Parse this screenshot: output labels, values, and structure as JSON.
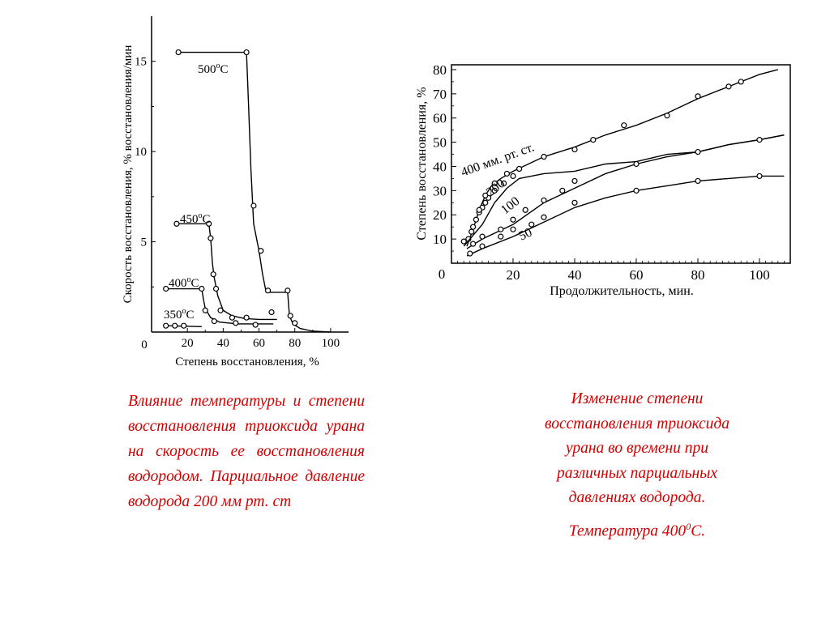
{
  "chart_data": [
    {
      "type": "line",
      "xlabel": "Степень восстановления, %",
      "ylabel": "Скорость восстановления, % восстановления/мин",
      "xlim": [
        0,
        110
      ],
      "ylim": [
        0,
        17.5
      ],
      "x_ticks": [
        "0",
        "20",
        "40",
        "60",
        "80",
        "100"
      ],
      "x_tick_values": [
        0,
        20,
        40,
        60,
        80,
        100
      ],
      "y_ticks": [
        "5",
        "10",
        "15"
      ],
      "y_tick_values": [
        5,
        10,
        15
      ],
      "grid": false,
      "series": [
        {
          "name": "500°C",
          "label_base": "500",
          "label_sup": "o",
          "label_tail": "C",
          "line": [
            [
              14,
              15.5
            ],
            [
              53,
              15.5
            ],
            [
              54,
              13
            ],
            [
              55.5,
              9
            ],
            [
              57,
              6
            ],
            [
              60,
              4.5
            ],
            [
              62,
              3.2
            ],
            [
              64,
              2.2
            ],
            [
              76,
              2.2
            ],
            [
              77,
              0.9
            ],
            [
              79,
              0.45
            ],
            [
              83,
              0.2
            ],
            [
              90,
              0.05
            ],
            [
              100,
              0
            ]
          ],
          "points": [
            [
              15,
              15.5
            ],
            [
              53,
              15.5
            ],
            [
              57,
              7.0
            ],
            [
              61,
              4.5
            ],
            [
              65,
              2.3
            ],
            [
              76,
              2.3
            ],
            [
              77.5,
              0.9
            ],
            [
              80,
              0.5
            ]
          ]
        },
        {
          "name": "450°C",
          "label_base": "450",
          "label_sup": "o",
          "label_tail": "C",
          "line": [
            [
              14,
              6.0
            ],
            [
              32,
              6.0
            ],
            [
              33,
              5.2
            ],
            [
              34,
              3.8
            ],
            [
              35,
              3.0
            ],
            [
              37,
              2.0
            ],
            [
              40,
              1.2
            ],
            [
              45,
              0.9
            ],
            [
              52,
              0.75
            ],
            [
              60,
              0.7
            ],
            [
              70,
              0.7
            ]
          ],
          "points": [
            [
              14,
              6.0
            ],
            [
              32,
              6.0
            ],
            [
              33,
              5.2
            ],
            [
              34.5,
              3.2
            ],
            [
              36,
              2.4
            ],
            [
              38.5,
              1.2
            ],
            [
              45,
              0.8
            ],
            [
              53,
              0.8
            ],
            [
              67,
              1.1
            ]
          ]
        },
        {
          "name": "400°C",
          "label_base": "400",
          "label_sup": "o",
          "label_tail": "C",
          "line": [
            [
              8,
              2.4
            ],
            [
              28,
              2.4
            ],
            [
              29,
              1.8
            ],
            [
              30,
              1.3
            ],
            [
              33,
              0.8
            ],
            [
              38,
              0.55
            ],
            [
              48,
              0.45
            ],
            [
              60,
              0.45
            ],
            [
              68,
              0.45
            ]
          ],
          "points": [
            [
              8,
              2.4
            ],
            [
              28,
              2.4
            ],
            [
              30,
              1.2
            ],
            [
              35,
              0.6
            ],
            [
              47,
              0.5
            ],
            [
              58,
              0.4
            ]
          ]
        },
        {
          "name": "350°C",
          "label_base": "350",
          "label_sup": "o",
          "label_tail": "C",
          "line": [
            [
              8,
              0.35
            ],
            [
              28,
              0.3
            ]
          ],
          "points": [
            [
              8,
              0.35
            ],
            [
              13,
              0.35
            ],
            [
              18,
              0.35
            ]
          ]
        }
      ]
    },
    {
      "type": "line",
      "xlabel": "Продолжительность, мин.",
      "ylabel": "Степень восстановления, %",
      "xlim": [
        0,
        110
      ],
      "ylim": [
        0,
        82
      ],
      "x_ticks": [
        "0",
        "20",
        "40",
        "60",
        "80",
        "100"
      ],
      "x_tick_values": [
        0,
        20,
        40,
        60,
        80,
        100
      ],
      "y_ticks": [
        "10",
        "20",
        "30",
        "40",
        "50",
        "60",
        "70",
        "80"
      ],
      "y_tick_values": [
        10,
        20,
        30,
        40,
        50,
        60,
        70,
        80
      ],
      "grid": false,
      "series": [
        {
          "name": "400 мм. рт. ст.",
          "line": [
            [
              5,
              7
            ],
            [
              7,
              14
            ],
            [
              9,
              22
            ],
            [
              11,
              28
            ],
            [
              13,
              32
            ],
            [
              16,
              35
            ],
            [
              20,
              38
            ],
            [
              30,
              44
            ],
            [
              40,
              48
            ],
            [
              50,
              53
            ],
            [
              60,
              57
            ],
            [
              70,
              62
            ],
            [
              80,
              68
            ],
            [
              90,
              73
            ],
            [
              100,
              78
            ],
            [
              106,
              80
            ]
          ],
          "points": [
            [
              5.5,
              10
            ],
            [
              6.5,
              13
            ],
            [
              8,
              18
            ],
            [
              9,
              21
            ],
            [
              10,
              23
            ],
            [
              11,
              25
            ],
            [
              12,
              27
            ],
            [
              14,
              30
            ],
            [
              17,
              33
            ],
            [
              20,
              36
            ],
            [
              30,
              44
            ],
            [
              40,
              47
            ],
            [
              46,
              51
            ],
            [
              56,
              57
            ],
            [
              70,
              61
            ],
            [
              80,
              69
            ],
            [
              90,
              73
            ],
            [
              94,
              75
            ]
          ]
        },
        {
          "name": "200",
          "line": [
            [
              4,
              7
            ],
            [
              10,
              16
            ],
            [
              14,
              25
            ],
            [
              18,
              31
            ],
            [
              22,
              35
            ],
            [
              30,
              37
            ],
            [
              40,
              38
            ],
            [
              50,
              41
            ],
            [
              60,
              42
            ],
            [
              70,
              45
            ],
            [
              80,
              46
            ],
            [
              90,
              49
            ],
            [
              100,
              51
            ],
            [
              108,
              53
            ]
          ],
          "points": [
            [
              4,
              9
            ],
            [
              7,
              15
            ],
            [
              9,
              22
            ],
            [
              11,
              28
            ],
            [
              14,
              33
            ],
            [
              18,
              37
            ],
            [
              22,
              39
            ]
          ]
        },
        {
          "name": "100",
          "line": [
            [
              5,
              6
            ],
            [
              10,
              10
            ],
            [
              20,
              16
            ],
            [
              30,
              25
            ],
            [
              40,
              31
            ],
            [
              50,
              37
            ],
            [
              60,
              41
            ],
            [
              70,
              44
            ],
            [
              80,
              46
            ],
            [
              90,
              49
            ],
            [
              100,
              51
            ],
            [
              108,
              53
            ]
          ],
          "points": [
            [
              7,
              8
            ],
            [
              10,
              11
            ],
            [
              16,
              14
            ],
            [
              20,
              18
            ],
            [
              24,
              22
            ],
            [
              30,
              26
            ],
            [
              36,
              30
            ],
            [
              40,
              34
            ],
            [
              60,
              41
            ],
            [
              80,
              46
            ],
            [
              100,
              51
            ]
          ]
        },
        {
          "name": "50",
          "line": [
            [
              5,
              3
            ],
            [
              10,
              6
            ],
            [
              20,
              11
            ],
            [
              30,
              17
            ],
            [
              40,
              23
            ],
            [
              50,
              27
            ],
            [
              60,
              30
            ],
            [
              70,
              32
            ],
            [
              80,
              34
            ],
            [
              90,
              35
            ],
            [
              100,
              36
            ],
            [
              108,
              36
            ]
          ],
          "points": [
            [
              6,
              4
            ],
            [
              10,
              7
            ],
            [
              16,
              11
            ],
            [
              20,
              14
            ],
            [
              26,
              16
            ],
            [
              30,
              19
            ],
            [
              40,
              25
            ],
            [
              60,
              30
            ],
            [
              80,
              34
            ],
            [
              100,
              36
            ]
          ]
        }
      ]
    }
  ],
  "captions": {
    "left": "Влияние температуры и степени восстановления триоксида урана на скорость ее восстановления водородом. Парциальное давление водорода 200 мм рт. ст",
    "right_main": "Изменение степени восстановления триоксида урана во времени при различных парциальных давлениях водорода.",
    "right_temp_prefix": "Температура 400",
    "right_temp_sup": "0",
    "right_temp_suffix": "С."
  }
}
